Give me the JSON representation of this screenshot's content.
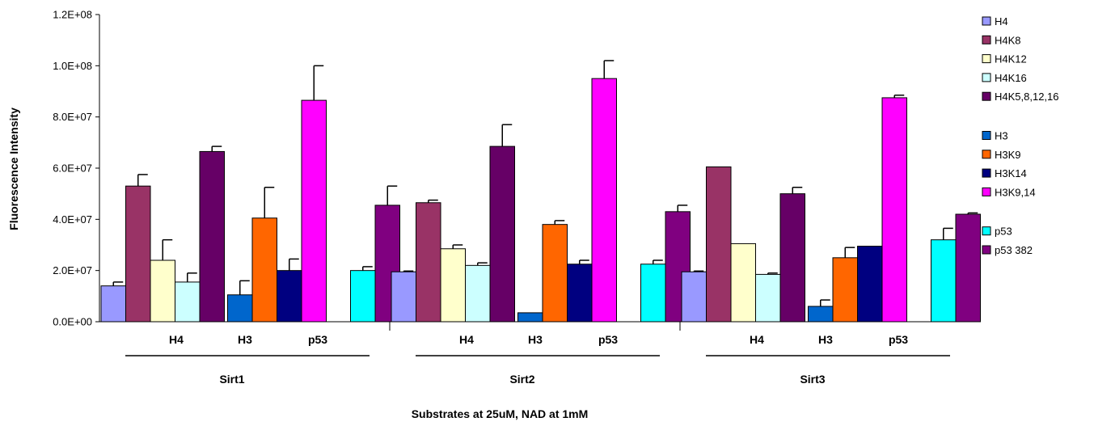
{
  "chart_data": {
    "type": "bar",
    "title": "",
    "xlabel": "Substrates at 25uM, NAD at 1mM",
    "ylabel": "Fluorescence Intensity",
    "ylim": [
      0,
      120000000
    ],
    "yticks": [
      "0.0E+00",
      "2.0E+07",
      "4.0E+07",
      "6.0E+07",
      "8.0E+07",
      "1.0E+08",
      "1.2E+08"
    ],
    "ytick_values": [
      0,
      20000000,
      40000000,
      60000000,
      80000000,
      100000000,
      120000000
    ],
    "grid": false,
    "legend_position": "right",
    "series": [
      {
        "name": "H4",
        "color": "#9999ff"
      },
      {
        "name": "H4K8",
        "color": "#993366"
      },
      {
        "name": "H4K12",
        "color": "#ffffcc"
      },
      {
        "name": "H4K16",
        "color": "#ccffff"
      },
      {
        "name": "H4K5,8,12,16",
        "color": "#660066"
      },
      {
        "name": "H3",
        "color": "#0066cc"
      },
      {
        "name": "H3K9",
        "color": "#ff6600"
      },
      {
        "name": "H3K14",
        "color": "#000080"
      },
      {
        "name": "H3K9,14",
        "color": "#ff00ff"
      },
      {
        "name": "p53",
        "color": "#00ffff"
      },
      {
        "name": "p53 382",
        "color": "#800080"
      }
    ],
    "enzymes": [
      {
        "name": "Sirt1",
        "groups": [
          {
            "label": "H4",
            "bars": [
              {
                "series": "H4",
                "value": 14000000,
                "error": 1500000
              },
              {
                "series": "H4K8",
                "value": 53000000,
                "error": 4500000
              },
              {
                "series": "H4K12",
                "value": 24000000,
                "error": 8000000
              },
              {
                "series": "H4K16",
                "value": 15500000,
                "error": 3500000
              },
              {
                "series": "H4K5,8,12,16",
                "value": 66500000,
                "error": 2000000
              }
            ]
          },
          {
            "label": "H3",
            "bars": [
              {
                "series": "H3",
                "value": 10500000,
                "error": 5500000
              },
              {
                "series": "H3K9",
                "value": 40500000,
                "error": 12000000
              },
              {
                "series": "H3K14",
                "value": 20000000,
                "error": 4500000
              },
              {
                "series": "H3K9,14",
                "value": 86500000,
                "error": 13500000
              }
            ]
          },
          {
            "label": "p53",
            "bars": [
              {
                "series": "p53",
                "value": 20000000,
                "error": 1500000
              },
              {
                "series": "p53 382",
                "value": 45500000,
                "error": 7500000
              }
            ]
          }
        ]
      },
      {
        "name": "Sirt2",
        "groups": [
          {
            "label": "H4",
            "bars": [
              {
                "series": "H4",
                "value": 19500000,
                "error": 300000
              },
              {
                "series": "H4K8",
                "value": 46500000,
                "error": 1000000
              },
              {
                "series": "H4K12",
                "value": 28500000,
                "error": 1500000
              },
              {
                "series": "H4K16",
                "value": 22000000,
                "error": 1000000
              },
              {
                "series": "H4K5,8,12,16",
                "value": 68500000,
                "error": 8500000
              }
            ]
          },
          {
            "label": "H3",
            "bars": [
              {
                "series": "H3",
                "value": 3500000,
                "error": 0
              },
              {
                "series": "H3K9",
                "value": 38000000,
                "error": 1500000
              },
              {
                "series": "H3K14",
                "value": 22500000,
                "error": 1500000
              },
              {
                "series": "H3K9,14",
                "value": 95000000,
                "error": 7000000
              }
            ]
          },
          {
            "label": "p53",
            "bars": [
              {
                "series": "p53",
                "value": 22500000,
                "error": 1500000
              },
              {
                "series": "p53 382",
                "value": 43000000,
                "error": 2500000
              }
            ]
          }
        ]
      },
      {
        "name": "Sirt3",
        "groups": [
          {
            "label": "H4",
            "bars": [
              {
                "series": "H4",
                "value": 19500000,
                "error": 300000
              },
              {
                "series": "H4K8",
                "value": 60500000,
                "error": 0
              },
              {
                "series": "H4K12",
                "value": 30500000,
                "error": 0
              },
              {
                "series": "H4K16",
                "value": 18500000,
                "error": 500000
              },
              {
                "series": "H4K5,8,12,16",
                "value": 50000000,
                "error": 2500000
              }
            ]
          },
          {
            "label": "H3",
            "bars": [
              {
                "series": "H3",
                "value": 6000000,
                "error": 2500000
              },
              {
                "series": "H3K9",
                "value": 25000000,
                "error": 4000000
              },
              {
                "series": "H3K14",
                "value": 29500000,
                "error": 0
              },
              {
                "series": "H3K9,14",
                "value": 87500000,
                "error": 1000000
              }
            ]
          },
          {
            "label": "p53",
            "bars": [
              {
                "series": "p53",
                "value": 32000000,
                "error": 4500000
              },
              {
                "series": "p53 382",
                "value": 42000000,
                "error": 500000
              }
            ]
          }
        ]
      }
    ],
    "legend_groups": [
      [
        "H4",
        "H4K8",
        "H4K12",
        "H4K16",
        "H4K5,8,12,16"
      ],
      [
        "H3",
        "H3K9",
        "H3K14",
        "H3K9,14"
      ],
      [
        "p53",
        "p53 382"
      ]
    ]
  }
}
